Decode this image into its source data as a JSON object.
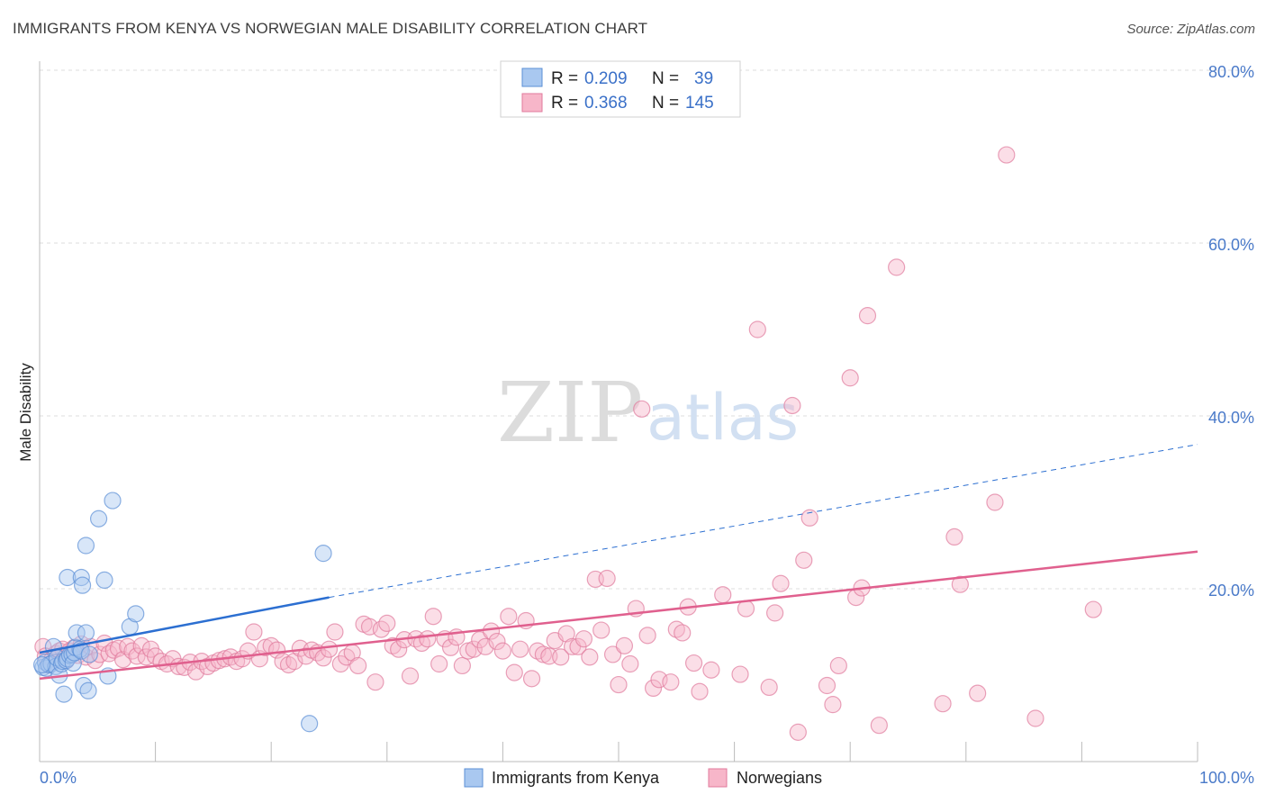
{
  "header": {
    "title": "IMMIGRANTS FROM KENYA VS NORWEGIAN MALE DISABILITY CORRELATION CHART",
    "source": "Source: ZipAtlas.com"
  },
  "legend": {
    "rows": [
      {
        "r_label": "R =",
        "r_value": "0.209",
        "n_label": "N =",
        "n_value": "39",
        "color": "#a9c8f0",
        "stroke": "#5b8fd6"
      },
      {
        "r_label": "R =",
        "r_value": "0.368",
        "n_label": "N =",
        "n_value": "145",
        "color": "#f7b6c9",
        "stroke": "#e07a9c"
      }
    ]
  },
  "bottom_legend": {
    "items": [
      {
        "label": "Immigrants from Kenya",
        "color": "#a9c8f0",
        "stroke": "#5b8fd6"
      },
      {
        "label": "Norwegians",
        "color": "#f7b6c9",
        "stroke": "#e07a9c"
      }
    ]
  },
  "watermark": {
    "zip": "ZIP",
    "atlas": "atlas"
  },
  "chart_data": {
    "type": "scatter",
    "title": "IMMIGRANTS FROM KENYA VS NORWEGIAN MALE DISABILITY CORRELATION CHART",
    "xlabel": "",
    "ylabel": "Male Disability",
    "xlim": [
      0,
      100
    ],
    "ylim": [
      0,
      80
    ],
    "x_tick_labels": [
      "0.0%",
      "100.0%"
    ],
    "y_ticks": [
      20,
      40,
      60,
      80
    ],
    "y_tick_labels": [
      "20.0%",
      "40.0%",
      "60.0%",
      "80.0%"
    ],
    "grid": "horizontal dashed",
    "legend_position": "top-center",
    "series": [
      {
        "name": "Immigrants from Kenya",
        "color": "#a9c8f0",
        "stroke": "#5b8fd6",
        "trend": {
          "x0": 0,
          "y0": 12.6,
          "x1": 25,
          "y1": 19.0,
          "dash_to_x": 100,
          "dash_to_y": 36.7,
          "color": "#2c6fd1"
        },
        "points": [
          [
            0.3,
            10.9
          ],
          [
            0.5,
            11.5
          ],
          [
            0.6,
            10.8
          ],
          [
            0.8,
            11.2
          ],
          [
            1.0,
            11.3
          ],
          [
            1.2,
            13.3
          ],
          [
            1.4,
            11.0
          ],
          [
            1.5,
            12.0
          ],
          [
            1.7,
            10.0
          ],
          [
            1.9,
            11.3
          ],
          [
            2.0,
            11.6
          ],
          [
            2.1,
            7.8
          ],
          [
            2.3,
            11.7
          ],
          [
            2.4,
            11.9
          ],
          [
            2.4,
            21.3
          ],
          [
            2.6,
            12.3
          ],
          [
            2.8,
            12.4
          ],
          [
            2.9,
            11.4
          ],
          [
            3.0,
            12.6
          ],
          [
            3.1,
            13.2
          ],
          [
            3.2,
            14.9
          ],
          [
            3.5,
            13.0
          ],
          [
            3.6,
            12.8
          ],
          [
            3.6,
            21.3
          ],
          [
            3.7,
            20.4
          ],
          [
            3.8,
            8.8
          ],
          [
            4.0,
            14.9
          ],
          [
            4.0,
            25.0
          ],
          [
            4.2,
            8.2
          ],
          [
            4.3,
            12.4
          ],
          [
            5.1,
            28.1
          ],
          [
            5.6,
            21.0
          ],
          [
            5.9,
            9.9
          ],
          [
            6.3,
            30.2
          ],
          [
            7.8,
            15.6
          ],
          [
            8.3,
            17.1
          ],
          [
            23.3,
            4.4
          ],
          [
            24.5,
            24.1
          ],
          [
            0.2,
            11.2
          ]
        ]
      },
      {
        "name": "Norwegians",
        "color": "#f7b6c9",
        "stroke": "#e07a9c",
        "trend": {
          "x0": 0,
          "y0": 9.6,
          "x1": 100,
          "y1": 24.3,
          "color": "#e0608e"
        },
        "points": [
          [
            0.3,
            13.3
          ],
          [
            0.5,
            12.2
          ],
          [
            0.8,
            11.2
          ],
          [
            1.1,
            11.9
          ],
          [
            1.4,
            12.5
          ],
          [
            1.7,
            12.8
          ],
          [
            2.0,
            13.0
          ],
          [
            2.3,
            11.7
          ],
          [
            2.6,
            12.8
          ],
          [
            3.0,
            13.2
          ],
          [
            3.3,
            12.3
          ],
          [
            3.6,
            13.6
          ],
          [
            4.0,
            12.1
          ],
          [
            4.4,
            13.3
          ],
          [
            4.8,
            11.7
          ],
          [
            5.2,
            12.4
          ],
          [
            5.6,
            13.7
          ],
          [
            6.0,
            12.5
          ],
          [
            6.4,
            12.9
          ],
          [
            6.8,
            13.1
          ],
          [
            7.2,
            11.8
          ],
          [
            7.6,
            13.3
          ],
          [
            8.0,
            12.8
          ],
          [
            8.4,
            12.2
          ],
          [
            8.8,
            13.4
          ],
          [
            9.2,
            12.1
          ],
          [
            9.6,
            13.0
          ],
          [
            10.0,
            12.2
          ],
          [
            10.5,
            11.6
          ],
          [
            11.0,
            11.3
          ],
          [
            11.5,
            11.9
          ],
          [
            12.0,
            11.0
          ],
          [
            12.5,
            10.9
          ],
          [
            13.0,
            11.5
          ],
          [
            13.5,
            10.4
          ],
          [
            14.0,
            11.6
          ],
          [
            14.5,
            11.0
          ],
          [
            15.0,
            11.4
          ],
          [
            15.5,
            11.7
          ],
          [
            16.0,
            11.9
          ],
          [
            16.5,
            12.1
          ],
          [
            17.0,
            11.6
          ],
          [
            17.5,
            11.9
          ],
          [
            18.0,
            12.8
          ],
          [
            18.5,
            15.0
          ],
          [
            19.0,
            11.9
          ],
          [
            19.5,
            13.2
          ],
          [
            20.0,
            13.4
          ],
          [
            20.5,
            12.9
          ],
          [
            21.0,
            11.6
          ],
          [
            21.5,
            11.2
          ],
          [
            22.0,
            11.6
          ],
          [
            22.5,
            13.1
          ],
          [
            23.0,
            12.2
          ],
          [
            23.5,
            12.9
          ],
          [
            24.0,
            12.6
          ],
          [
            24.5,
            12.0
          ],
          [
            25.0,
            13.0
          ],
          [
            25.5,
            15.0
          ],
          [
            26.0,
            11.3
          ],
          [
            26.5,
            12.1
          ],
          [
            27.0,
            12.6
          ],
          [
            27.5,
            11.1
          ],
          [
            28.0,
            15.9
          ],
          [
            28.5,
            15.6
          ],
          [
            29.0,
            9.2
          ],
          [
            29.5,
            15.3
          ],
          [
            30.0,
            16.0
          ],
          [
            30.5,
            13.4
          ],
          [
            31.0,
            13.0
          ],
          [
            31.5,
            14.1
          ],
          [
            32.0,
            9.9
          ],
          [
            32.5,
            14.2
          ],
          [
            33.0,
            13.7
          ],
          [
            33.5,
            14.2
          ],
          [
            34.0,
            16.8
          ],
          [
            34.5,
            11.3
          ],
          [
            35.0,
            14.2
          ],
          [
            35.5,
            13.2
          ],
          [
            36.0,
            14.4
          ],
          [
            36.5,
            11.1
          ],
          [
            37.0,
            12.8
          ],
          [
            37.5,
            13.0
          ],
          [
            38.0,
            14.1
          ],
          [
            38.5,
            13.3
          ],
          [
            39.0,
            15.1
          ],
          [
            39.5,
            13.9
          ],
          [
            40.0,
            12.8
          ],
          [
            40.5,
            16.8
          ],
          [
            41.0,
            10.3
          ],
          [
            41.5,
            13.0
          ],
          [
            42.0,
            16.3
          ],
          [
            42.5,
            9.6
          ],
          [
            43.0,
            12.8
          ],
          [
            43.5,
            12.4
          ],
          [
            44.0,
            12.2
          ],
          [
            44.5,
            14.0
          ],
          [
            45.0,
            12.1
          ],
          [
            45.5,
            14.8
          ],
          [
            46.0,
            13.3
          ],
          [
            46.5,
            13.3
          ],
          [
            47.0,
            14.2
          ],
          [
            47.5,
            12.1
          ],
          [
            48.0,
            21.1
          ],
          [
            48.5,
            15.2
          ],
          [
            49.0,
            21.2
          ],
          [
            49.5,
            12.4
          ],
          [
            50.0,
            8.9
          ],
          [
            50.5,
            13.4
          ],
          [
            51.0,
            11.3
          ],
          [
            51.5,
            17.7
          ],
          [
            52.0,
            40.8
          ],
          [
            52.5,
            14.6
          ],
          [
            53.0,
            8.5
          ],
          [
            53.5,
            9.5
          ],
          [
            54.5,
            9.2
          ],
          [
            55.0,
            15.3
          ],
          [
            55.5,
            14.9
          ],
          [
            56.0,
            17.9
          ],
          [
            56.5,
            11.4
          ],
          [
            57.0,
            8.1
          ],
          [
            58.0,
            10.6
          ],
          [
            59.0,
            19.3
          ],
          [
            60.5,
            10.1
          ],
          [
            61.0,
            17.7
          ],
          [
            62.0,
            50.0
          ],
          [
            63.0,
            8.6
          ],
          [
            63.5,
            17.2
          ],
          [
            64.0,
            20.6
          ],
          [
            65.0,
            41.2
          ],
          [
            65.5,
            3.4
          ],
          [
            66.0,
            23.3
          ],
          [
            66.5,
            28.2
          ],
          [
            68.0,
            8.8
          ],
          [
            68.5,
            6.6
          ],
          [
            69.0,
            11.1
          ],
          [
            70.0,
            44.4
          ],
          [
            70.5,
            19.0
          ],
          [
            71.0,
            20.1
          ],
          [
            71.5,
            51.6
          ],
          [
            72.5,
            4.2
          ],
          [
            74.0,
            57.2
          ],
          [
            78.0,
            6.7
          ],
          [
            79.0,
            26.0
          ],
          [
            79.5,
            20.5
          ],
          [
            81.0,
            7.9
          ],
          [
            82.5,
            30.0
          ],
          [
            83.5,
            70.2
          ],
          [
            86.0,
            5.0
          ],
          [
            91.0,
            17.6
          ]
        ]
      }
    ]
  }
}
